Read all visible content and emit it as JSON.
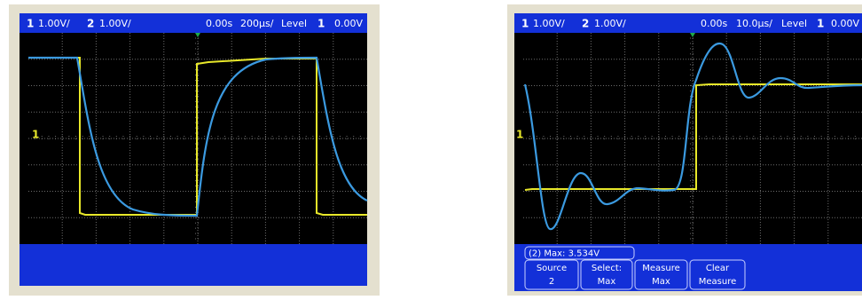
{
  "scopes": [
    {
      "header": {
        "ch1": "1",
        "ch1_scale": "1.00V/",
        "ch2": "2",
        "ch2_scale": "1.00V/",
        "delay": "0.00s",
        "timebase": "200µs/",
        "level_label": "Level",
        "trigger_source": "1",
        "trigger_level": "0.00V"
      }
    },
    {
      "header": {
        "ch1": "1",
        "ch1_scale": "1.00V/",
        "ch2": "2",
        "ch2_scale": "1.00V/",
        "delay": "0.00s",
        "timebase": "10.0µs/",
        "level_label": "Level",
        "trigger_source": "1",
        "trigger_level": "0.00V"
      },
      "measurement": "(2) Max: 3.534V",
      "softkeys": [
        {
          "label": "Source",
          "value": "2"
        },
        {
          "label": "Select:",
          "value": "Max"
        },
        {
          "label": "Measure",
          "value": "Max"
        },
        {
          "label": "Clear",
          "value": "Measure"
        }
      ]
    }
  ]
}
